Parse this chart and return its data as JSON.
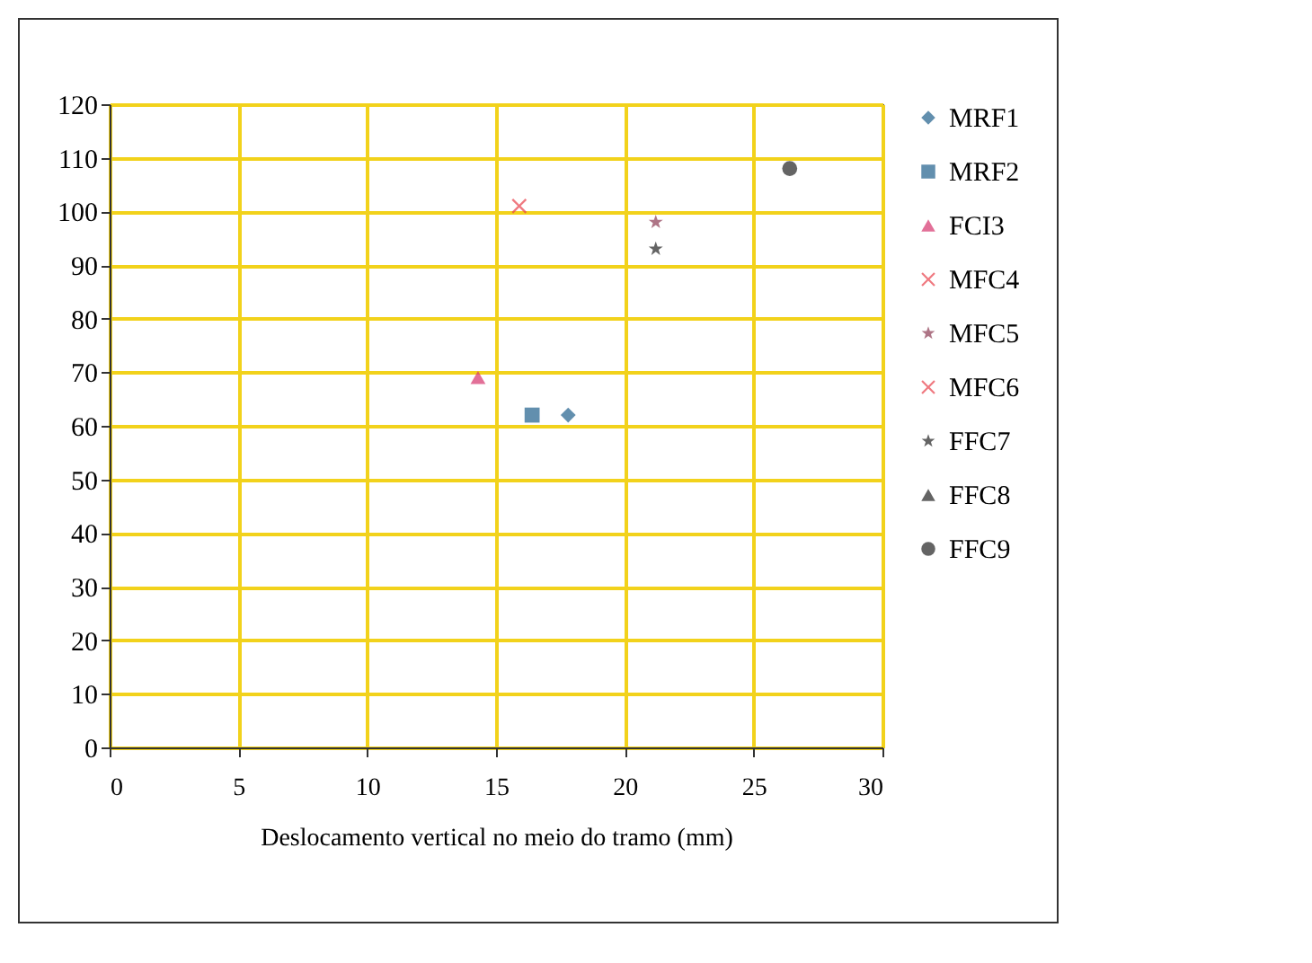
{
  "chart_data": {
    "type": "scatter",
    "xlabel": "Deslocamento vertical no meio do tramo (mm)",
    "xlim": [
      0,
      30
    ],
    "xticks": [
      0,
      5,
      10,
      15,
      20,
      25,
      30
    ],
    "ylim": [
      0,
      120
    ],
    "yticks": [
      0,
      10,
      20,
      30,
      40,
      50,
      60,
      70,
      80,
      90,
      100,
      110,
      120
    ],
    "grid": true,
    "legend": "right",
    "series": [
      {
        "name": "MRF1",
        "color": "#1f5f8b",
        "marker": "diamond",
        "x": [
          17.8
        ],
        "values": [
          62
        ]
      },
      {
        "name": "MRF2",
        "color": "#1f5f8b",
        "marker": "square",
        "x": [
          16.4
        ],
        "values": [
          62
        ]
      },
      {
        "name": "FCI3",
        "color": "#d6336c",
        "marker": "triangle",
        "x": [
          14.3
        ],
        "values": [
          69
        ]
      },
      {
        "name": "MFC4",
        "color": "#e8404a",
        "marker": "cross",
        "x": [
          15.9
        ],
        "values": [
          101
        ]
      },
      {
        "name": "MFC5",
        "color": "#8b3a52",
        "marker": "star",
        "x": [
          21.2
        ],
        "values": [
          98
        ]
      },
      {
        "name": "MFC6",
        "color": "#e8404a",
        "marker": "cross"
      },
      {
        "name": "FFC7",
        "color": "#222222",
        "marker": "star",
        "x": [
          21.2
        ],
        "values": [
          93
        ]
      },
      {
        "name": "FFC8",
        "color": "#222222",
        "marker": "triangle"
      },
      {
        "name": "FFC9",
        "color": "#222222",
        "marker": "circle",
        "x": [
          26.4
        ],
        "values": [
          108
        ]
      }
    ]
  }
}
